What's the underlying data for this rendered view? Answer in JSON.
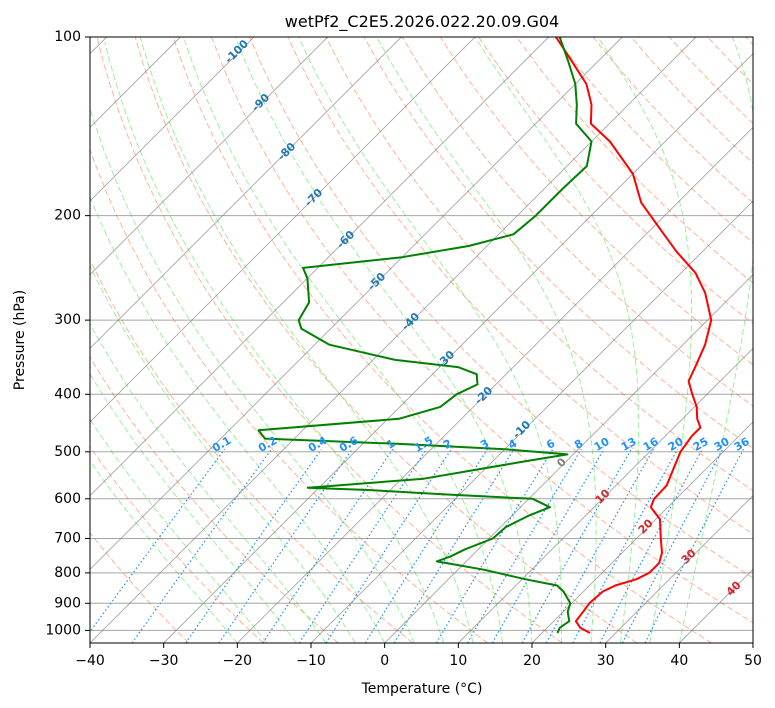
{
  "chart_data": {
    "type": "skew-t",
    "title": "wetPf2_C2E5.2026.022.20.09.G04",
    "xlabel": "Temperature (°C)",
    "ylabel": "Pressure (hPa)",
    "xlim": [
      -40,
      50
    ],
    "ylim": [
      1050,
      100
    ],
    "x_ticks": [
      -40,
      -30,
      -20,
      -10,
      0,
      10,
      20,
      30,
      40,
      50
    ],
    "x_tick_labels": [
      "−40",
      "−30",
      "−20",
      "−10",
      "0",
      "10",
      "20",
      "30",
      "40",
      "50"
    ],
    "y_ticks": [
      100,
      200,
      300,
      400,
      500,
      600,
      700,
      800,
      900,
      1000
    ],
    "y_tick_labels": [
      "100",
      "200",
      "300",
      "400",
      "500",
      "600",
      "700",
      "800",
      "900",
      "1000"
    ],
    "grid": true,
    "colors": {
      "temperature": "#ff0000",
      "dewpoint": "#008000",
      "isotherm": "#808080",
      "dry_adiabat": "#ffa07a",
      "moist_adiabat": "#90ee90",
      "mixing_ratio": "#1e90ff",
      "isotherm_label": "#1f77b4",
      "moist_label": "#d62728"
    },
    "isotherm_labels": [
      "-100",
      "-90",
      "-80",
      "-70",
      "-60",
      "-50",
      "-40",
      "-30",
      "-20",
      "-10",
      "0"
    ],
    "mixing_ratio_labels": [
      "0.1",
      "0.2",
      "0.4",
      "0.6",
      "1",
      "1.5",
      "2",
      "3",
      "4",
      "6",
      "8",
      "10",
      "13",
      "16",
      "20",
      "25",
      "30",
      "36"
    ],
    "moist_adiabat_labels": [
      "10",
      "20",
      "30",
      "40"
    ],
    "temperature_profile": [
      {
        "p": 1010,
        "t": 26.5
      },
      {
        "p": 990,
        "t": 24.5
      },
      {
        "p": 965,
        "t": 23.0
      },
      {
        "p": 930,
        "t": 22.7
      },
      {
        "p": 900,
        "t": 22.4
      },
      {
        "p": 860,
        "t": 22.6
      },
      {
        "p": 840,
        "t": 23.5
      },
      {
        "p": 820,
        "t": 25.5
      },
      {
        "p": 800,
        "t": 26.4
      },
      {
        "p": 770,
        "t": 26.4
      },
      {
        "p": 740,
        "t": 25.4
      },
      {
        "p": 700,
        "t": 23.3
      },
      {
        "p": 650,
        "t": 20.6
      },
      {
        "p": 620,
        "t": 17.7
      },
      {
        "p": 600,
        "t": 17.0
      },
      {
        "p": 570,
        "t": 16.9
      },
      {
        "p": 530,
        "t": 15.4
      },
      {
        "p": 500,
        "t": 14.2
      },
      {
        "p": 470,
        "t": 13.6
      },
      {
        "p": 455,
        "t": 13.6
      },
      {
        "p": 440,
        "t": 12.0
      },
      {
        "p": 420,
        "t": 10.3
      },
      {
        "p": 400,
        "t": 8.0
      },
      {
        "p": 380,
        "t": 5.7
      },
      {
        "p": 360,
        "t": 4.7
      },
      {
        "p": 330,
        "t": 3.0
      },
      {
        "p": 300,
        "t": 0.5
      },
      {
        "p": 270,
        "t": -4.0
      },
      {
        "p": 250,
        "t": -8.0
      },
      {
        "p": 230,
        "t": -13.5
      },
      {
        "p": 210,
        "t": -19.0
      },
      {
        "p": 190,
        "t": -25.0
      },
      {
        "p": 170,
        "t": -30.0
      },
      {
        "p": 150,
        "t": -37.5
      },
      {
        "p": 140,
        "t": -42.5
      },
      {
        "p": 130,
        "t": -45.0
      },
      {
        "p": 120,
        "t": -48.5
      },
      {
        "p": 110,
        "t": -53.5
      },
      {
        "p": 100,
        "t": -59.0
      }
    ],
    "dewpoint_profile": [
      {
        "p": 1010,
        "t": 22.1
      },
      {
        "p": 990,
        "t": 21.7
      },
      {
        "p": 965,
        "t": 22.1
      },
      {
        "p": 930,
        "t": 20.6
      },
      {
        "p": 900,
        "t": 19.8
      },
      {
        "p": 860,
        "t": 17.3
      },
      {
        "p": 840,
        "t": 15.6
      },
      {
        "p": 820,
        "t": 10.5
      },
      {
        "p": 790,
        "t": 3.5
      },
      {
        "p": 765,
        "t": -4.0
      },
      {
        "p": 750,
        "t": -2.8
      },
      {
        "p": 730,
        "t": -1.8
      },
      {
        "p": 700,
        "t": 0.5
      },
      {
        "p": 670,
        "t": 0.7
      },
      {
        "p": 640,
        "t": 2.3
      },
      {
        "p": 620,
        "t": 4.0
      },
      {
        "p": 600,
        "t": 0.5
      },
      {
        "p": 590,
        "t": -12.0
      },
      {
        "p": 580,
        "t": -23.0
      },
      {
        "p": 575,
        "t": -31.5
      },
      {
        "p": 555,
        "t": -17.0
      },
      {
        "p": 520,
        "t": -6.0
      },
      {
        "p": 505,
        "t": -0.8
      },
      {
        "p": 495,
        "t": -10.0
      },
      {
        "p": 485,
        "t": -25.0
      },
      {
        "p": 475,
        "t": -44.0
      },
      {
        "p": 460,
        "t": -46.0
      },
      {
        "p": 440,
        "t": -28.5
      },
      {
        "p": 420,
        "t": -24.5
      },
      {
        "p": 400,
        "t": -24.0
      },
      {
        "p": 385,
        "t": -22.5
      },
      {
        "p": 370,
        "t": -24.0
      },
      {
        "p": 360,
        "t": -27.5
      },
      {
        "p": 350,
        "t": -37.0
      },
      {
        "p": 330,
        "t": -48.0
      },
      {
        "p": 310,
        "t": -54.0
      },
      {
        "p": 300,
        "t": -55.5
      },
      {
        "p": 280,
        "t": -56.5
      },
      {
        "p": 255,
        "t": -60.0
      },
      {
        "p": 245,
        "t": -62.0
      },
      {
        "p": 235,
        "t": -50.0
      },
      {
        "p": 225,
        "t": -42.5
      },
      {
        "p": 215,
        "t": -38.0
      },
      {
        "p": 200,
        "t": -37.5
      },
      {
        "p": 180,
        "t": -37.5
      },
      {
        "p": 165,
        "t": -37.3
      },
      {
        "p": 150,
        "t": -40.0
      },
      {
        "p": 140,
        "t": -44.5
      },
      {
        "p": 130,
        "t": -47.0
      },
      {
        "p": 120,
        "t": -50.0
      },
      {
        "p": 110,
        "t": -54.0
      },
      {
        "p": 100,
        "t": -58.5
      }
    ]
  }
}
